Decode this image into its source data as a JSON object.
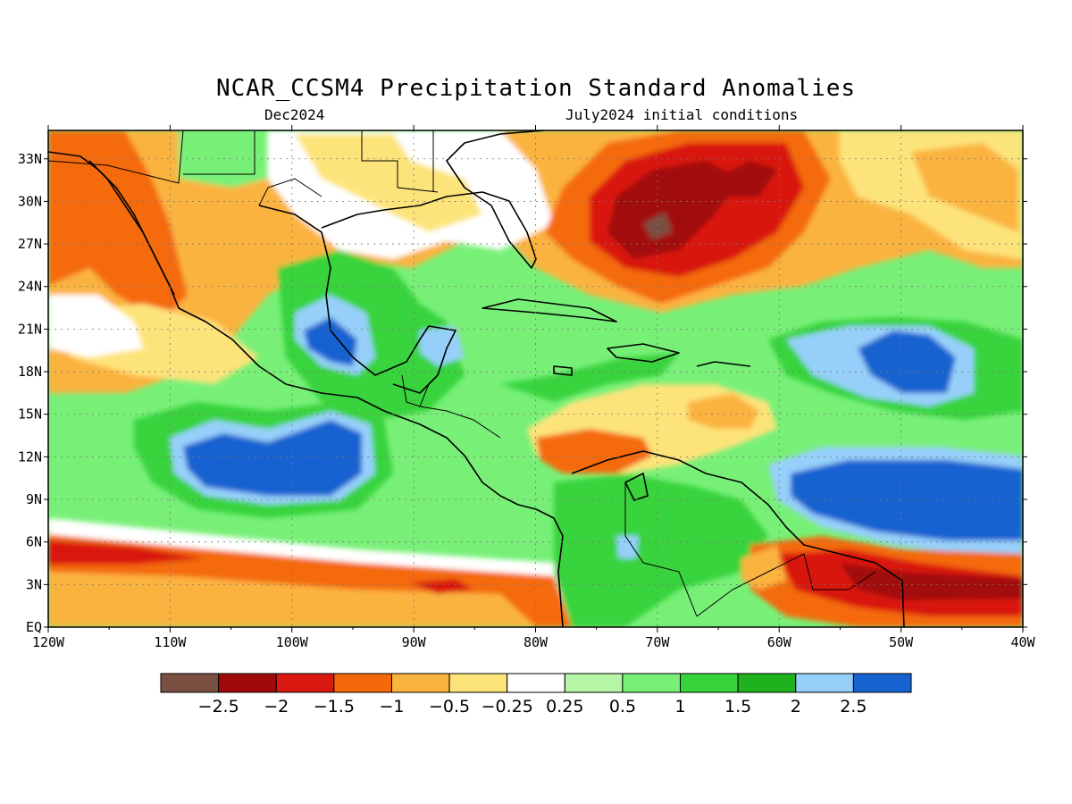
{
  "map": {
    "title": "NCAR_CCSM4 Precipitation Standard Anomalies",
    "subtitle_left": "Dec2024",
    "subtitle_right": "July2024 initial conditions",
    "lat_ticks": [
      "33N",
      "30N",
      "27N",
      "24N",
      "21N",
      "18N",
      "15N",
      "12N",
      "9N",
      "6N",
      "3N",
      "EQ"
    ],
    "lon_ticks": [
      "120W",
      "110W",
      "100W",
      "90W",
      "80W",
      "70W",
      "60W",
      "50W",
      "40W"
    ],
    "extent": {
      "lon": [
        -120,
        -40
      ],
      "lat": [
        0,
        35
      ]
    },
    "grid": "dotted"
  },
  "colorbar": {
    "labels": [
      "-2.5",
      "-2",
      "-1.5",
      "-1",
      "-0.5",
      "-0.25",
      "0.25",
      "0.5",
      "1",
      "1.5",
      "2",
      "2.5"
    ],
    "colors": [
      "#7a5043",
      "#a10a0a",
      "#d9190f",
      "#f46a0a",
      "#fbb340",
      "#fde47a",
      "#ffffff",
      "#b5f5a5",
      "#78f078",
      "#37d33c",
      "#1fb21f",
      "#96d0fa",
      "#1562d0"
    ]
  }
}
